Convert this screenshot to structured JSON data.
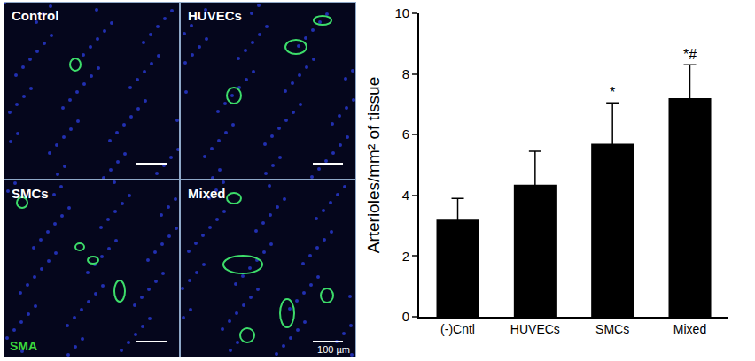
{
  "chart_data": {
    "type": "bar",
    "categories": [
      "(-)Cntl",
      "HUVECs",
      "SMCs",
      "Mixed"
    ],
    "values": [
      3.2,
      4.35,
      5.7,
      7.2
    ],
    "error": [
      0.7,
      1.1,
      1.35,
      1.1
    ],
    "color": "#000000",
    "y_label": "Arterioles/mm² of tissue",
    "ylim": [
      0,
      10
    ],
    "yticks": [
      0,
      2,
      4,
      6,
      8,
      10
    ],
    "grid": false,
    "annotations": [
      {
        "category": "SMCs",
        "text": "*"
      },
      {
        "category": "Mixed",
        "text": "*#"
      }
    ]
  },
  "image_panels": {
    "labels": [
      "Control",
      "HUVECs",
      "SMCs",
      "Mixed"
    ],
    "stain_label": "SMA",
    "scale_bar_label": "100 µm"
  }
}
